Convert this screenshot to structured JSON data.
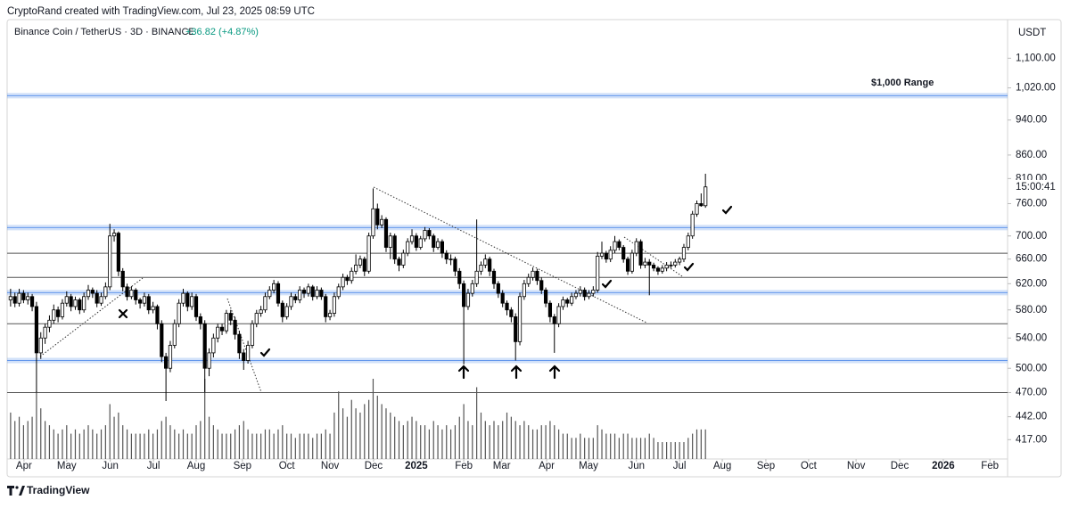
{
  "header": {
    "credit": "CryptoRand created with TradingView.com, Jul 23, 2025 08:59 UTC",
    "symbol": "Binance Coin / TetherUS · 3D · BINANCE",
    "change": "+36.82 (+4.87%)",
    "currency": "USDT",
    "countdown": "15:00:41",
    "brand": "TradingView"
  },
  "chart_data": {
    "type": "candlestick",
    "log_scale": true,
    "up_color": "#ffffff",
    "down_color": "#000000",
    "volume_color": "#555555",
    "ylim": [
      397,
      1219
    ],
    "yticks": [
      {
        "value": 417,
        "label": "417.00"
      },
      {
        "value": 442,
        "label": "442.00"
      },
      {
        "value": 470,
        "label": "470.00"
      },
      {
        "value": 500,
        "label": "500.00"
      },
      {
        "value": 540,
        "label": "540.00"
      },
      {
        "value": 580,
        "label": "580.00"
      },
      {
        "value": 620,
        "label": "620.00"
      },
      {
        "value": 660,
        "label": "660.00"
      },
      {
        "value": 700,
        "label": "700.00"
      },
      {
        "value": 760,
        "label": "760.00"
      },
      {
        "value": 810,
        "label": "810.00"
      },
      {
        "value": 860,
        "label": "860.00"
      },
      {
        "value": 940,
        "label": "940.00"
      },
      {
        "value": 1020,
        "label": "1,020.00"
      },
      {
        "value": 1100,
        "label": "1,100.00"
      }
    ],
    "xlim": [
      -0.8,
      231
    ],
    "xticks": [
      {
        "value": 3.1,
        "label": "Apr"
      },
      {
        "value": 13,
        "label": "May"
      },
      {
        "value": 23.1,
        "label": "Jun"
      },
      {
        "value": 33.1,
        "label": "Jul"
      },
      {
        "value": 43,
        "label": "Aug"
      },
      {
        "value": 53.7,
        "label": "Sep"
      },
      {
        "value": 64,
        "label": "Oct"
      },
      {
        "value": 74,
        "label": "Nov"
      },
      {
        "value": 84.1,
        "label": "Dec"
      },
      {
        "value": 94,
        "label": "2025"
      },
      {
        "value": 105,
        "label": "Feb"
      },
      {
        "value": 113.8,
        "label": "Mar"
      },
      {
        "value": 124.2,
        "label": "Apr"
      },
      {
        "value": 133.9,
        "label": "May"
      },
      {
        "value": 145,
        "label": "Jun"
      },
      {
        "value": 155,
        "label": "Jul"
      },
      {
        "value": 164.9,
        "label": "Aug"
      },
      {
        "value": 175,
        "label": "Sep"
      },
      {
        "value": 184.9,
        "label": "Oct"
      },
      {
        "value": 195.9,
        "label": "Nov"
      },
      {
        "value": 206,
        "label": "Dec"
      },
      {
        "value": 216.1,
        "label": "2026"
      },
      {
        "value": 226.9,
        "label": "Feb"
      }
    ],
    "annotation": "$1,000 Range",
    "levels": [
      {
        "value": 1000,
        "style": "band",
        "color": "#4a86e8"
      },
      {
        "value": 715,
        "style": "band",
        "color": "#4a86e8"
      },
      {
        "value": 606,
        "style": "band",
        "color": "#4a86e8"
      },
      {
        "value": 510,
        "style": "band",
        "color": "#4a86e8"
      },
      {
        "value": 670,
        "style": "line",
        "color": "#555555"
      },
      {
        "value": 630,
        "style": "line",
        "color": "#555555"
      },
      {
        "value": 560,
        "style": "line",
        "color": "#555555"
      },
      {
        "value": 470,
        "style": "line",
        "color": "#555555"
      }
    ],
    "candles": [
      [
        595,
        612,
        585,
        600
      ],
      [
        600,
        606,
        584,
        590
      ],
      [
        590,
        612,
        585,
        605
      ],
      [
        605,
        610,
        590,
        595
      ],
      [
        595,
        606,
        588,
        600
      ],
      [
        600,
        604,
        578,
        585
      ],
      [
        585,
        592,
        470,
        520
      ],
      [
        520,
        548,
        512,
        540
      ],
      [
        540,
        560,
        532,
        555
      ],
      [
        555,
        572,
        548,
        565
      ],
      [
        565,
        588,
        560,
        580
      ],
      [
        580,
        585,
        562,
        570
      ],
      [
        570,
        596,
        566,
        590
      ],
      [
        590,
        608,
        585,
        600
      ],
      [
        600,
        604,
        578,
        585
      ],
      [
        585,
        600,
        580,
        595
      ],
      [
        595,
        598,
        574,
        580
      ],
      [
        580,
        606,
        576,
        600
      ],
      [
        600,
        618,
        595,
        610
      ],
      [
        610,
        614,
        598,
        605
      ],
      [
        605,
        610,
        584,
        590
      ],
      [
        590,
        606,
        586,
        600
      ],
      [
        600,
        622,
        596,
        615
      ],
      [
        615,
        722,
        610,
        700
      ],
      [
        700,
        712,
        690,
        705
      ],
      [
        705,
        708,
        632,
        640
      ],
      [
        640,
        645,
        608,
        615
      ],
      [
        615,
        620,
        594,
        600
      ],
      [
        600,
        616,
        596,
        610
      ],
      [
        610,
        613,
        588,
        595
      ],
      [
        595,
        598,
        582,
        590
      ],
      [
        590,
        606,
        585,
        600
      ],
      [
        600,
        604,
        574,
        580
      ],
      [
        580,
        592,
        575,
        585
      ],
      [
        585,
        588,
        552,
        560
      ],
      [
        560,
        565,
        508,
        515
      ],
      [
        515,
        520,
        460,
        500
      ],
      [
        500,
        536,
        495,
        530
      ],
      [
        530,
        566,
        526,
        560
      ],
      [
        560,
        596,
        555,
        590
      ],
      [
        590,
        612,
        585,
        605
      ],
      [
        605,
        608,
        578,
        585
      ],
      [
        585,
        606,
        580,
        600
      ],
      [
        600,
        604,
        564,
        570
      ],
      [
        570,
        575,
        552,
        560
      ],
      [
        560,
        565,
        470,
        500
      ],
      [
        500,
        526,
        490,
        520
      ],
      [
        520,
        546,
        514,
        540
      ],
      [
        540,
        560,
        534,
        555
      ],
      [
        555,
        560,
        544,
        550
      ],
      [
        550,
        580,
        546,
        575
      ],
      [
        575,
        580,
        558,
        565
      ],
      [
        565,
        570,
        538,
        545
      ],
      [
        545,
        550,
        512,
        520
      ],
      [
        520,
        525,
        498,
        510
      ],
      [
        510,
        536,
        506,
        530
      ],
      [
        530,
        565,
        526,
        560
      ],
      [
        560,
        580,
        555,
        575
      ],
      [
        575,
        586,
        570,
        580
      ],
      [
        580,
        606,
        576,
        600
      ],
      [
        600,
        616,
        596,
        610
      ],
      [
        610,
        626,
        605,
        620
      ],
      [
        620,
        624,
        585,
        590
      ],
      [
        590,
        594,
        562,
        570
      ],
      [
        570,
        590,
        566,
        585
      ],
      [
        585,
        606,
        580,
        600
      ],
      [
        600,
        604,
        590,
        595
      ],
      [
        595,
        616,
        590,
        610
      ],
      [
        610,
        614,
        598,
        605
      ],
      [
        605,
        620,
        600,
        615
      ],
      [
        615,
        618,
        594,
        600
      ],
      [
        600,
        616,
        596,
        610
      ],
      [
        610,
        614,
        595,
        600
      ],
      [
        600,
        604,
        562,
        570
      ],
      [
        570,
        580,
        565,
        575
      ],
      [
        575,
        606,
        570,
        600
      ],
      [
        600,
        620,
        596,
        615
      ],
      [
        615,
        636,
        610,
        630
      ],
      [
        630,
        634,
        618,
        625
      ],
      [
        625,
        646,
        620,
        640
      ],
      [
        640,
        668,
        635,
        650
      ],
      [
        650,
        666,
        645,
        660
      ],
      [
        660,
        664,
        632,
        640
      ],
      [
        640,
        706,
        636,
        700
      ],
      [
        700,
        790,
        695,
        750
      ],
      [
        750,
        760,
        712,
        720
      ],
      [
        720,
        738,
        714,
        730
      ],
      [
        730,
        734,
        672,
        680
      ],
      [
        680,
        706,
        660,
        700
      ],
      [
        700,
        704,
        652,
        660
      ],
      [
        660,
        664,
        640,
        650
      ],
      [
        650,
        676,
        645,
        670
      ],
      [
        670,
        696,
        665,
        690
      ],
      [
        690,
        712,
        685,
        700
      ],
      [
        700,
        705,
        674,
        680
      ],
      [
        680,
        700,
        676,
        695
      ],
      [
        695,
        716,
        690,
        710
      ],
      [
        710,
        714,
        694,
        700
      ],
      [
        700,
        704,
        672,
        680
      ],
      [
        680,
        696,
        676,
        690
      ],
      [
        690,
        694,
        662,
        670
      ],
      [
        670,
        675,
        652,
        660
      ],
      [
        660,
        668,
        650,
        660
      ],
      [
        660,
        664,
        632,
        640
      ],
      [
        640,
        645,
        612,
        620
      ],
      [
        620,
        625,
        505,
        585
      ],
      [
        585,
        612,
        580,
        605
      ],
      [
        605,
        626,
        600,
        620
      ],
      [
        620,
        730,
        615,
        640
      ],
      [
        640,
        656,
        634,
        650
      ],
      [
        650,
        668,
        645,
        660
      ],
      [
        660,
        664,
        632,
        640
      ],
      [
        640,
        644,
        612,
        620
      ],
      [
        620,
        624,
        598,
        605
      ],
      [
        605,
        610,
        584,
        590
      ],
      [
        590,
        594,
        572,
        580
      ],
      [
        580,
        584,
        562,
        570
      ],
      [
        570,
        575,
        510,
        535
      ],
      [
        535,
        606,
        530,
        600
      ],
      [
        600,
        626,
        595,
        620
      ],
      [
        620,
        636,
        615,
        630
      ],
      [
        630,
        646,
        625,
        640
      ],
      [
        640,
        644,
        618,
        625
      ],
      [
        625,
        630,
        604,
        610
      ],
      [
        610,
        614,
        584,
        590
      ],
      [
        590,
        594,
        562,
        570
      ],
      [
        570,
        574,
        520,
        560
      ],
      [
        560,
        590,
        555,
        585
      ],
      [
        585,
        600,
        580,
        595
      ],
      [
        595,
        598,
        584,
        590
      ],
      [
        590,
        606,
        586,
        600
      ],
      [
        600,
        610,
        596,
        605
      ],
      [
        605,
        616,
        600,
        610
      ],
      [
        610,
        614,
        594,
        600
      ],
      [
        600,
        610,
        596,
        605
      ],
      [
        605,
        616,
        600,
        610
      ],
      [
        610,
        672,
        606,
        665
      ],
      [
        665,
        690,
        660,
        670
      ],
      [
        670,
        674,
        654,
        660
      ],
      [
        660,
        682,
        655,
        675
      ],
      [
        675,
        700,
        670,
        690
      ],
      [
        690,
        694,
        675,
        680
      ],
      [
        680,
        684,
        654,
        660
      ],
      [
        660,
        664,
        634,
        640
      ],
      [
        640,
        676,
        636,
        670
      ],
      [
        670,
        696,
        665,
        690
      ],
      [
        690,
        694,
        644,
        650
      ],
      [
        650,
        662,
        645,
        655
      ],
      [
        655,
        660,
        602,
        650
      ],
      [
        650,
        654,
        640,
        645
      ],
      [
        645,
        648,
        634,
        640
      ],
      [
        640,
        650,
        636,
        645
      ],
      [
        645,
        655,
        640,
        650
      ],
      [
        650,
        656,
        645,
        650
      ],
      [
        650,
        660,
        646,
        655
      ],
      [
        655,
        664,
        650,
        660
      ],
      [
        660,
        686,
        655,
        680
      ],
      [
        680,
        706,
        675,
        700
      ],
      [
        700,
        746,
        695,
        740
      ],
      [
        740,
        766,
        735,
        760
      ],
      [
        760,
        780,
        754,
        756
      ],
      [
        756,
        820,
        752,
        793
      ]
    ],
    "volume": [
      55,
      45,
      50,
      40,
      45,
      50,
      80,
      60,
      45,
      40,
      35,
      30,
      35,
      40,
      30,
      35,
      30,
      35,
      40,
      35,
      30,
      35,
      40,
      65,
      50,
      55,
      40,
      35,
      30,
      30,
      30,
      30,
      35,
      30,
      35,
      45,
      50,
      40,
      35,
      30,
      35,
      30,
      30,
      40,
      45,
      95,
      50,
      40,
      35,
      30,
      30,
      30,
      35,
      40,
      45,
      35,
      30,
      30,
      30,
      35,
      35,
      30,
      35,
      40,
      30,
      30,
      25,
      30,
      30,
      30,
      25,
      30,
      30,
      35,
      30,
      55,
      80,
      60,
      50,
      70,
      60,
      55,
      65,
      70,
      95,
      75,
      65,
      60,
      55,
      50,
      45,
      40,
      45,
      50,
      45,
      40,
      40,
      35,
      45,
      40,
      35,
      40,
      35,
      40,
      50,
      65,
      45,
      40,
      85,
      55,
      45,
      40,
      45,
      40,
      45,
      55,
      50,
      45,
      40,
      45,
      40,
      35,
      35,
      40,
      40,
      45,
      40,
      35,
      30,
      30,
      25,
      25,
      30,
      25,
      25,
      25,
      40,
      35,
      30,
      30,
      30,
      25,
      30,
      30,
      25,
      25,
      25,
      25,
      30,
      25,
      20,
      20,
      20,
      20,
      20,
      20,
      20,
      25,
      30,
      35,
      35,
      35
    ]
  }
}
